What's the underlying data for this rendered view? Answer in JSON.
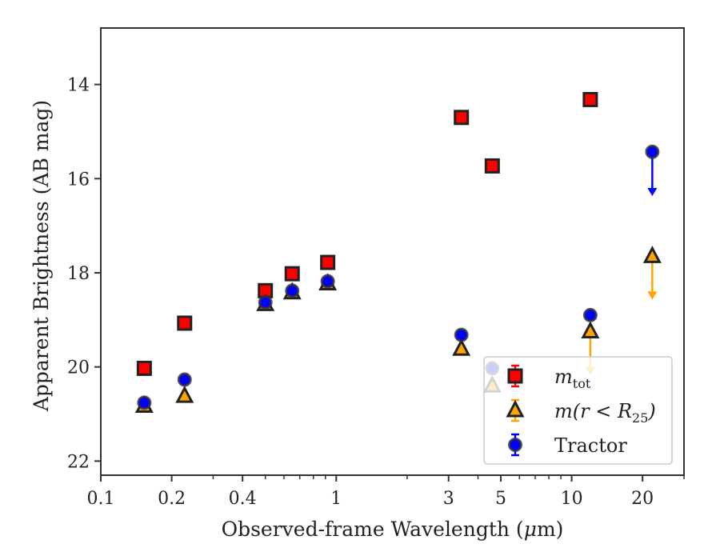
{
  "chart_data": {
    "type": "scatter",
    "xlabel_pre": "Observed-frame Wavelength (",
    "xlabel_mu": "μ",
    "xlabel_post": "m)",
    "ylabel": "Apparent Brightness (AB mag)",
    "xscale": "log",
    "xlim": [
      0.1,
      30
    ],
    "ylim": [
      22.3,
      12.8
    ],
    "y_inverted": true,
    "grid": false,
    "legend_position": "lower-right",
    "x_ticks": [
      {
        "value": 0.1,
        "label": "0.1"
      },
      {
        "value": 0.2,
        "label": "0.2"
      },
      {
        "value": 0.4,
        "label": "0.4"
      },
      {
        "value": 1,
        "label": "1"
      },
      {
        "value": 3,
        "label": "3"
      },
      {
        "value": 5,
        "label": "5"
      },
      {
        "value": 10,
        "label": "10"
      },
      {
        "value": 20,
        "label": "20"
      }
    ],
    "y_ticks": [
      14,
      16,
      18,
      20,
      22
    ],
    "series": [
      {
        "key": "mtot",
        "legend_main": "m",
        "legend_sub": "tot",
        "marker": "square",
        "color": "#ff0000",
        "edge": "#222222",
        "points": [
          {
            "x": 0.153,
            "y": 20.03
          },
          {
            "x": 0.227,
            "y": 19.07
          },
          {
            "x": 0.5,
            "y": 18.38
          },
          {
            "x": 0.65,
            "y": 18.02
          },
          {
            "x": 0.92,
            "y": 17.78
          },
          {
            "x": 3.4,
            "y": 14.7
          },
          {
            "x": 4.6,
            "y": 15.73
          },
          {
            "x": 12.0,
            "y": 14.32
          }
        ]
      },
      {
        "key": "mr25",
        "legend_main": "m(r < R",
        "legend_sub": "25",
        "legend_tail": ")",
        "marker": "triangle",
        "color": "#ffa500",
        "edge": "#222222",
        "points": [
          {
            "x": 0.153,
            "y": 20.83
          },
          {
            "x": 0.227,
            "y": 20.62
          },
          {
            "x": 0.5,
            "y": 18.67
          },
          {
            "x": 0.65,
            "y": 18.42
          },
          {
            "x": 0.92,
            "y": 18.23
          },
          {
            "x": 3.4,
            "y": 19.62
          },
          {
            "x": 4.6,
            "y": 20.4
          },
          {
            "x": 12.0,
            "y": 19.25,
            "upper_limit": true,
            "arrow_to": 20.1
          },
          {
            "x": 22.0,
            "y": 17.65,
            "upper_limit": true,
            "arrow_to": 18.5
          }
        ]
      },
      {
        "key": "tractor",
        "legend_main": "Tractor",
        "marker": "circle",
        "color": "#0000ff",
        "edge": "#333333",
        "points": [
          {
            "x": 0.153,
            "y": 20.76
          },
          {
            "x": 0.227,
            "y": 20.27
          },
          {
            "x": 0.5,
            "y": 18.63
          },
          {
            "x": 0.65,
            "y": 18.38
          },
          {
            "x": 0.92,
            "y": 18.18
          },
          {
            "x": 3.4,
            "y": 19.32
          },
          {
            "x": 4.6,
            "y": 20.03
          },
          {
            "x": 12.0,
            "y": 18.9
          },
          {
            "x": 22.0,
            "y": 15.43,
            "upper_limit": true,
            "arrow_to": 16.3
          }
        ]
      }
    ]
  }
}
